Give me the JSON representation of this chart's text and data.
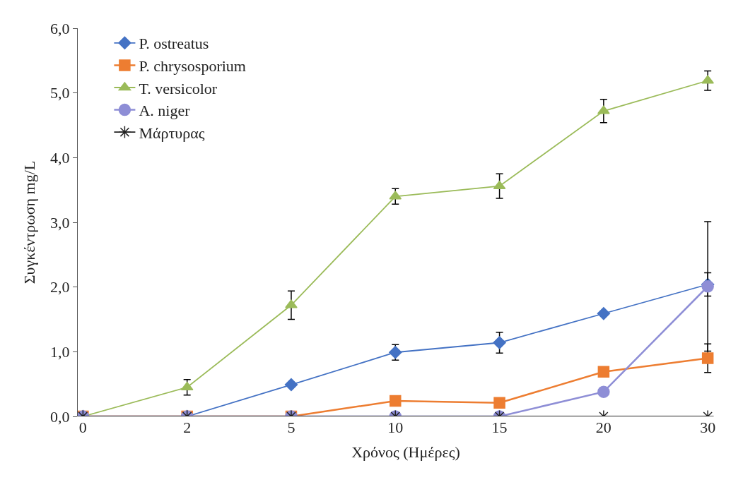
{
  "chart_data": {
    "type": "line",
    "xlabel": "Χρόνος (Ημέρες)",
    "ylabel": "Συγκέντρωση mg/L",
    "categories": [
      "0",
      "2",
      "5",
      "10",
      "15",
      "20",
      "30"
    ],
    "ylim": [
      0,
      6
    ],
    "yticks": [
      {
        "value": 0,
        "label": "0,0"
      },
      {
        "value": 1,
        "label": "1,0"
      },
      {
        "value": 2,
        "label": "2,0"
      },
      {
        "value": 3,
        "label": "3,0"
      },
      {
        "value": 4,
        "label": "4,0"
      },
      {
        "value": 5,
        "label": "5,0"
      },
      {
        "value": 6,
        "label": "6,0"
      }
    ],
    "legend": "top left",
    "series": [
      {
        "name": "P. ostreatus",
        "color": "#4472c4",
        "marker": "diamond",
        "values": [
          0,
          0,
          0.49,
          0.99,
          1.14,
          1.59,
          2.04
        ],
        "errors": [
          null,
          null,
          null,
          0.12,
          0.16,
          null,
          0.18
        ]
      },
      {
        "name": "P. chrysosporium",
        "color": "#ed7d31",
        "marker": "square",
        "values": [
          0,
          0,
          0,
          0.24,
          0.21,
          0.69,
          0.9
        ],
        "errors": [
          null,
          null,
          null,
          null,
          null,
          null,
          0.22
        ]
      },
      {
        "name": "T. versicolor",
        "color": "#9bbb59",
        "marker": "triangle",
        "values": [
          0,
          0.45,
          1.72,
          3.4,
          3.56,
          4.72,
          5.19
        ],
        "errors": [
          null,
          0.12,
          0.22,
          0.12,
          0.19,
          0.18,
          0.15
        ]
      },
      {
        "name": "A. niger",
        "color": "#8e8ed6",
        "marker": "circle",
        "values": [
          0,
          0,
          0,
          0,
          0,
          0.38,
          2.01
        ],
        "errors": [
          null,
          null,
          null,
          null,
          null,
          null,
          1.0
        ]
      },
      {
        "name": "Μάρτυρας",
        "color": "#222222",
        "marker": "cross",
        "values": [
          0,
          0,
          0,
          0,
          0,
          0,
          0
        ]
      }
    ]
  }
}
